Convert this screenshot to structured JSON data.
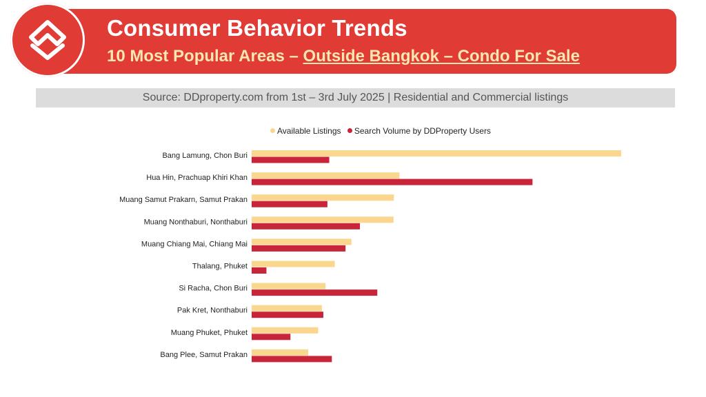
{
  "header": {
    "title": "Consumer Behavior Trends",
    "subtitle_prefix": "10 Most Popular Areas – ",
    "subtitle_link": "Outside Bangkok – Condo For Sale",
    "source": "Source: DDproperty.com from 1st – 3rd July 2025 | Residential and Commercial listings"
  },
  "colors": {
    "brand_red": "#e03b35",
    "available": "#fbd68e",
    "search": "#c8243a"
  },
  "chart_data": {
    "type": "bar",
    "orientation": "horizontal",
    "categories": [
      "Bang Lamung, Chon Buri",
      "Hua Hin, Prachuap Khiri Khan",
      "Muang Samut Prakarn, Samut Prakan",
      "Muang Nonthaburi, Nonthaburi",
      "Muang Chiang Mai, Chiang Mai",
      "Thalang, Phuket",
      "Si Racha, Chon Buri",
      "Pak Kret, Nonthaburi",
      "Muang Phuket, Phuket",
      "Bang Plee, Samut Prakan"
    ],
    "series": [
      {
        "name": "Available Listings",
        "values": [
          100,
          40,
          38.5,
          38.4,
          27,
          22.5,
          20,
          19,
          18,
          15.3
        ]
      },
      {
        "name": "Search Volume by DDProperty Users",
        "values": [
          21,
          76,
          20.5,
          29.3,
          25.4,
          4,
          34,
          19.4,
          10.5,
          21.7
        ]
      }
    ],
    "xlim": [
      0,
      100
    ],
    "grid": false,
    "legend_position": "top"
  }
}
